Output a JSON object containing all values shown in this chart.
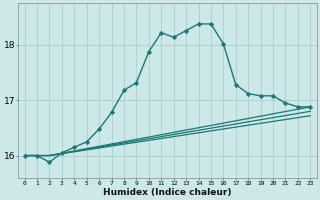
{
  "title": "",
  "xlabel": "Humidex (Indice chaleur)",
  "ylabel": "",
  "bg_color": "#cce8e8",
  "grid_color": "#aacfcf",
  "line_color": "#1a7a6e",
  "xlim": [
    -0.5,
    23.5
  ],
  "ylim": [
    15.6,
    18.75
  ],
  "yticks": [
    16,
    17,
    18
  ],
  "xticks": [
    0,
    1,
    2,
    3,
    4,
    5,
    6,
    7,
    8,
    9,
    10,
    11,
    12,
    13,
    14,
    15,
    16,
    17,
    18,
    19,
    20,
    21,
    22,
    23
  ],
  "lines": [
    {
      "x": [
        0,
        1,
        2,
        3,
        4,
        5,
        6,
        7,
        8,
        9,
        10,
        11,
        12,
        13,
        14,
        15,
        16,
        17,
        18,
        19,
        20,
        21,
        22,
        23
      ],
      "y": [
        16.0,
        16.0,
        15.88,
        16.05,
        16.15,
        16.25,
        16.48,
        16.78,
        17.18,
        17.32,
        17.88,
        18.22,
        18.14,
        18.26,
        18.38,
        18.38,
        18.02,
        17.28,
        17.12,
        17.08,
        17.08,
        16.95,
        16.88,
        16.88
      ],
      "marker": "D",
      "lw": 1.0,
      "ms": 2.2,
      "dotted": false
    },
    {
      "x": [
        0,
        2,
        23
      ],
      "y": [
        16.0,
        16.0,
        16.88
      ],
      "marker": null,
      "lw": 0.9,
      "ms": 0,
      "dotted": false
    },
    {
      "x": [
        0,
        2,
        23
      ],
      "y": [
        16.0,
        16.0,
        16.8
      ],
      "marker": null,
      "lw": 0.9,
      "ms": 0,
      "dotted": false
    },
    {
      "x": [
        0,
        2,
        23
      ],
      "y": [
        16.0,
        16.0,
        16.72
      ],
      "marker": null,
      "lw": 0.9,
      "ms": 0,
      "dotted": false
    }
  ]
}
